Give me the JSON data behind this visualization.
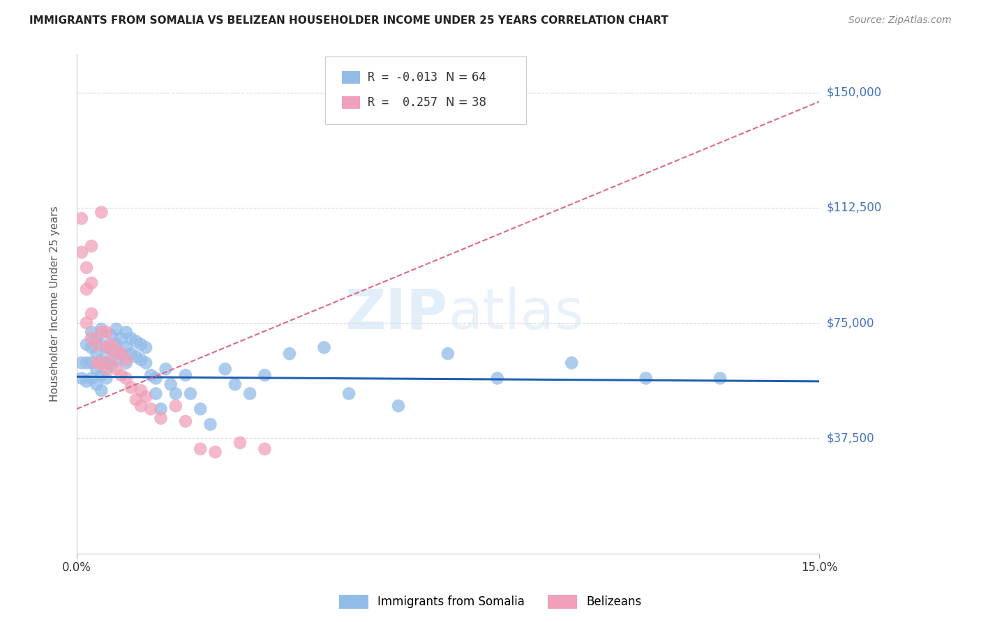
{
  "title": "IMMIGRANTS FROM SOMALIA VS BELIZEAN HOUSEHOLDER INCOME UNDER 25 YEARS CORRELATION CHART",
  "source": "Source: ZipAtlas.com",
  "ylabel": "Householder Income Under 25 years",
  "xlim": [
    0.0,
    0.15
  ],
  "ylim": [
    0,
    162500
  ],
  "yticks": [
    0,
    37500,
    75000,
    112500,
    150000
  ],
  "ytick_labels": [
    "",
    "$37,500",
    "$75,000",
    "$112,500",
    "$150,000"
  ],
  "somalia_color": "#92bce8",
  "belize_color": "#f0a0b8",
  "somalia_line_color": "#2060b0",
  "belize_line_color": "#e06880",
  "somalia_R": -0.013,
  "somalia_N": 64,
  "belize_R": 0.257,
  "belize_N": 38,
  "background_color": "#ffffff",
  "grid_color": "#d8d8d8",
  "title_color": "#222222",
  "axis_label_color": "#555555",
  "ytick_color": "#4472c4",
  "watermark_color": "#d0e4f5",
  "somalia_line_y0": 57500,
  "somalia_line_y1": 56000,
  "belize_line_y0": 47000,
  "belize_line_y1": 147000,
  "somalia_x": [
    0.001,
    0.001,
    0.002,
    0.002,
    0.002,
    0.003,
    0.003,
    0.003,
    0.003,
    0.004,
    0.004,
    0.004,
    0.004,
    0.005,
    0.005,
    0.005,
    0.005,
    0.005,
    0.006,
    0.006,
    0.006,
    0.007,
    0.007,
    0.007,
    0.008,
    0.008,
    0.008,
    0.009,
    0.009,
    0.01,
    0.01,
    0.01,
    0.011,
    0.011,
    0.012,
    0.012,
    0.013,
    0.013,
    0.014,
    0.014,
    0.015,
    0.016,
    0.016,
    0.017,
    0.018,
    0.019,
    0.02,
    0.022,
    0.023,
    0.025,
    0.027,
    0.03,
    0.032,
    0.035,
    0.038,
    0.043,
    0.05,
    0.055,
    0.065,
    0.075,
    0.085,
    0.1,
    0.115,
    0.13
  ],
  "somalia_y": [
    62000,
    57000,
    68000,
    62000,
    56000,
    72000,
    67000,
    62000,
    57000,
    70000,
    65000,
    60000,
    55000,
    73000,
    68000,
    63000,
    58000,
    53000,
    67000,
    62000,
    57000,
    71000,
    66000,
    61000,
    73000,
    68000,
    63000,
    70000,
    65000,
    72000,
    67000,
    62000,
    70000,
    65000,
    69000,
    64000,
    68000,
    63000,
    67000,
    62000,
    58000,
    57000,
    52000,
    47000,
    60000,
    55000,
    52000,
    58000,
    52000,
    47000,
    42000,
    60000,
    55000,
    52000,
    58000,
    65000,
    67000,
    52000,
    48000,
    65000,
    57000,
    62000,
    57000,
    57000
  ],
  "belize_x": [
    0.001,
    0.001,
    0.002,
    0.002,
    0.002,
    0.003,
    0.003,
    0.003,
    0.003,
    0.004,
    0.004,
    0.005,
    0.005,
    0.005,
    0.006,
    0.006,
    0.006,
    0.007,
    0.007,
    0.008,
    0.008,
    0.009,
    0.009,
    0.01,
    0.01,
    0.011,
    0.012,
    0.013,
    0.013,
    0.014,
    0.015,
    0.017,
    0.02,
    0.022,
    0.025,
    0.028,
    0.033,
    0.038
  ],
  "belize_y": [
    109000,
    98000,
    93000,
    86000,
    75000,
    100000,
    88000,
    78000,
    70000,
    68000,
    62000,
    111000,
    72000,
    62000,
    72000,
    67000,
    60000,
    68000,
    63000,
    66000,
    60000,
    65000,
    58000,
    63000,
    57000,
    54000,
    50000,
    53000,
    48000,
    51000,
    47000,
    44000,
    48000,
    43000,
    34000,
    33000,
    36000,
    34000
  ]
}
